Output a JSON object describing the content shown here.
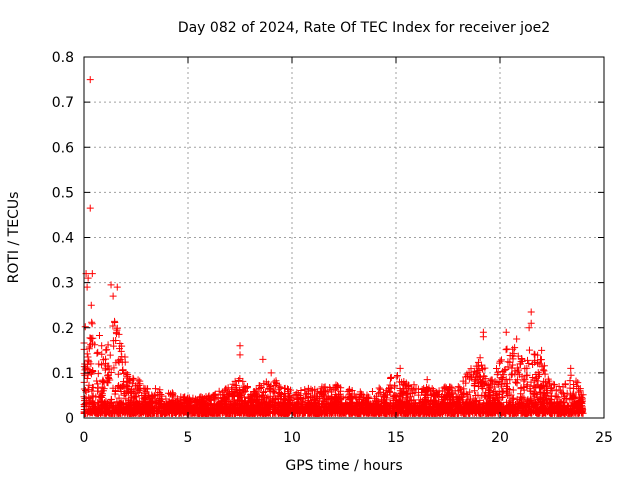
{
  "chart_data": {
    "type": "scatter",
    "title": "Day 082 of 2024, Rate Of TEC Index for receiver joe2",
    "xlabel": "GPS time / hours",
    "ylabel": "ROTI / TECUs",
    "xlim": [
      0,
      25
    ],
    "ylim": [
      0,
      0.8
    ],
    "xticks": [
      0,
      5,
      10,
      15,
      20,
      25
    ],
    "xtick_labels": [
      "0",
      "5",
      "10",
      "15",
      "20",
      "25"
    ],
    "yticks": [
      0,
      0.1,
      0.2,
      0.3,
      0.4,
      0.5,
      0.6,
      0.7,
      0.8
    ],
    "ytick_labels": [
      "0",
      "0.1",
      "0.2",
      "0.3",
      "0.4",
      "0.5",
      "0.6",
      "0.7",
      "0.8"
    ],
    "grid": true,
    "marker": "+",
    "series_color": "#ff0000",
    "highlight_points": [
      {
        "x": 0.3,
        "y": 0.75
      },
      {
        "x": 0.3,
        "y": 0.465
      },
      {
        "x": 0.1,
        "y": 0.32
      },
      {
        "x": 0.2,
        "y": 0.31
      },
      {
        "x": 0.4,
        "y": 0.32
      },
      {
        "x": 0.15,
        "y": 0.29
      },
      {
        "x": 1.3,
        "y": 0.295
      },
      {
        "x": 1.6,
        "y": 0.29
      },
      {
        "x": 1.4,
        "y": 0.27
      },
      {
        "x": 0.35,
        "y": 0.25
      },
      {
        "x": 7.5,
        "y": 0.16
      },
      {
        "x": 7.5,
        "y": 0.14
      },
      {
        "x": 8.6,
        "y": 0.13
      },
      {
        "x": 19.2,
        "y": 0.19
      },
      {
        "x": 19.2,
        "y": 0.18
      },
      {
        "x": 21.5,
        "y": 0.235
      },
      {
        "x": 21.5,
        "y": 0.21
      },
      {
        "x": 21.4,
        "y": 0.2
      },
      {
        "x": 20.3,
        "y": 0.19
      },
      {
        "x": 20.8,
        "y": 0.175
      },
      {
        "x": 22.0,
        "y": 0.15
      },
      {
        "x": 15.2,
        "y": 0.11
      },
      {
        "x": 16.5,
        "y": 0.085
      },
      {
        "x": 9.0,
        "y": 0.1
      },
      {
        "x": 23.4,
        "y": 0.11
      }
    ],
    "envelope": [
      {
        "x": 0.0,
        "y": 0.2
      },
      {
        "x": 0.5,
        "y": 0.22
      },
      {
        "x": 1.0,
        "y": 0.17
      },
      {
        "x": 1.5,
        "y": 0.22
      },
      {
        "x": 2.0,
        "y": 0.13
      },
      {
        "x": 2.5,
        "y": 0.09
      },
      {
        "x": 3.0,
        "y": 0.07
      },
      {
        "x": 4.0,
        "y": 0.06
      },
      {
        "x": 5.0,
        "y": 0.045
      },
      {
        "x": 6.0,
        "y": 0.05
      },
      {
        "x": 7.0,
        "y": 0.07
      },
      {
        "x": 7.5,
        "y": 0.1
      },
      {
        "x": 8.0,
        "y": 0.06
      },
      {
        "x": 9.0,
        "y": 0.09
      },
      {
        "x": 10.0,
        "y": 0.06
      },
      {
        "x": 11.0,
        "y": 0.07
      },
      {
        "x": 12.0,
        "y": 0.075
      },
      {
        "x": 13.0,
        "y": 0.06
      },
      {
        "x": 14.0,
        "y": 0.06
      },
      {
        "x": 15.0,
        "y": 0.1
      },
      {
        "x": 16.0,
        "y": 0.07
      },
      {
        "x": 17.0,
        "y": 0.07
      },
      {
        "x": 18.0,
        "y": 0.07
      },
      {
        "x": 19.0,
        "y": 0.14
      },
      {
        "x": 19.5,
        "y": 0.09
      },
      {
        "x": 20.0,
        "y": 0.13
      },
      {
        "x": 20.5,
        "y": 0.17
      },
      {
        "x": 21.0,
        "y": 0.14
      },
      {
        "x": 21.5,
        "y": 0.16
      },
      {
        "x": 22.0,
        "y": 0.13
      },
      {
        "x": 22.5,
        "y": 0.08
      },
      {
        "x": 23.0,
        "y": 0.07
      },
      {
        "x": 23.5,
        "y": 0.1
      },
      {
        "x": 24.0,
        "y": 0.06
      }
    ],
    "floor": 0.01
  }
}
